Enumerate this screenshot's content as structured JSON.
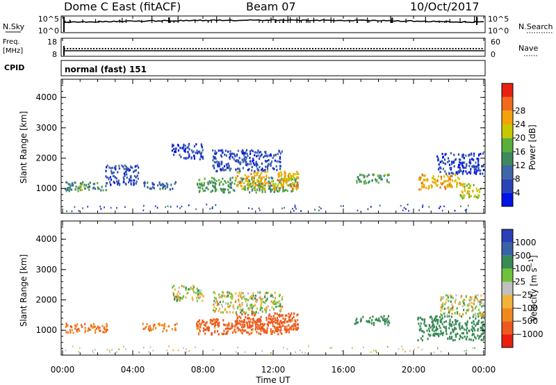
{
  "header": {
    "station": "Dome C East (fitACF)",
    "beam": "Beam 07",
    "date": "10/Oct/2017"
  },
  "strip_labels": {
    "nsky": "N.Sky",
    "nsky_top": "10^5",
    "nsky_bottom": "10^0",
    "nsearch": "N.Search",
    "nsearch_top": "10^5",
    "nsearch_bottom": "10^0",
    "freq_line1": "Freq.",
    "freq_line2": "[MHz]",
    "freq_top": "18",
    "freq_bottom": "8",
    "nave": "Nave",
    "nave_top": "60",
    "nave_bottom": "0",
    "cpid": "CPID",
    "cpid_value": "normal (fast) 151"
  },
  "colors": {
    "power_scale": [
      "#0014e6",
      "#2a44b8",
      "#3f66a8",
      "#3e8a5c",
      "#5aae3a",
      "#c8c800",
      "#f5a20a",
      "#f06a1a",
      "#e82010"
    ],
    "velocity_scale": [
      "#2a3fb8",
      "#3a62a8",
      "#3a8a56",
      "#6ec23a",
      "#c0c0c0",
      "#f0b43a",
      "#f08a1e",
      "#ee5a1e",
      "#e82010"
    ]
  },
  "chart_data": [
    {
      "type": "heatmap",
      "title": "Power",
      "ylabel": "Slant Range [km]",
      "colorbar_label": "Power [dB]",
      "colorbar_ticks": [
        "4",
        "8",
        "12",
        "16",
        "20",
        "24",
        "28"
      ],
      "x_ticks": [
        "00:00",
        "04:00",
        "08:00",
        "12:00",
        "16:00",
        "20:00",
        "00:00"
      ],
      "xlim_hours": [
        0,
        24
      ],
      "y_ticks": [
        "1000",
        "2000",
        "3000",
        "4000"
      ],
      "ylim_km": [
        180,
        4600
      ],
      "regions": [
        {
          "t": [
            0.1,
            2.6
          ],
          "r": [
            950,
            1250
          ],
          "v": 12
        },
        {
          "t": [
            0.9,
            1.3
          ],
          "r": [
            980,
            1200
          ],
          "v": 18
        },
        {
          "t": [
            2.4,
            4.3
          ],
          "r": [
            1150,
            1800
          ],
          "v": 6
        },
        {
          "t": [
            4.5,
            6.5
          ],
          "r": [
            1000,
            1250
          ],
          "v": 8
        },
        {
          "t": [
            6.2,
            8.0
          ],
          "r": [
            2000,
            2500
          ],
          "v": 5
        },
        {
          "t": [
            7.6,
            13.4
          ],
          "r": [
            900,
            1400
          ],
          "v": 14
        },
        {
          "t": [
            9.8,
            13.4
          ],
          "r": [
            1000,
            1600
          ],
          "v": 22
        },
        {
          "t": [
            8.5,
            12.5
          ],
          "r": [
            1600,
            2300
          ],
          "v": 6
        },
        {
          "t": [
            16.6,
            18.6
          ],
          "r": [
            1200,
            1500
          ],
          "v": 14
        },
        {
          "t": [
            20.2,
            22.6
          ],
          "r": [
            1000,
            1500
          ],
          "v": 22
        },
        {
          "t": [
            21.3,
            24.0
          ],
          "r": [
            1500,
            2200
          ],
          "v": 5
        },
        {
          "t": [
            22.6,
            23.8
          ],
          "r": [
            700,
            1200
          ],
          "v": 20
        }
      ]
    },
    {
      "type": "heatmap",
      "title": "Velocity",
      "ylabel": "Slant Range [km]",
      "xlabel": "Time UT",
      "colorbar_label": "Velocity [m s^-1]",
      "colorbar_ticks": [
        "1000",
        "500",
        "100",
        "25",
        "-25",
        "-100",
        "-500",
        "-1000"
      ],
      "x_ticks": [
        "00:00",
        "04:00",
        "08:00",
        "12:00",
        "16:00",
        "20:00",
        "00:00"
      ],
      "xlim_hours": [
        0,
        24
      ],
      "y_ticks": [
        "1000",
        "2000",
        "3000",
        "4000"
      ],
      "ylim_km": [
        180,
        4600
      ],
      "regions": [
        {
          "t": [
            0.1,
            2.6
          ],
          "r": [
            950,
            1250
          ],
          "v": -300
        },
        {
          "t": [
            4.5,
            6.5
          ],
          "r": [
            1000,
            1250
          ],
          "v": -250
        },
        {
          "t": [
            6.2,
            8.0
          ],
          "r": [
            2000,
            2500
          ],
          "v": 10
        },
        {
          "t": [
            7.6,
            13.4
          ],
          "r": [
            900,
            1400
          ],
          "v": -350
        },
        {
          "t": [
            9.8,
            13.4
          ],
          "r": [
            1000,
            1600
          ],
          "v": -400
        },
        {
          "t": [
            8.5,
            12.5
          ],
          "r": [
            1600,
            2300
          ],
          "v": 0
        },
        {
          "t": [
            16.6,
            18.6
          ],
          "r": [
            1200,
            1500
          ],
          "v": 150
        },
        {
          "t": [
            20.2,
            24.0
          ],
          "r": [
            700,
            1500
          ],
          "v": 200
        },
        {
          "t": [
            21.5,
            24.0
          ],
          "r": [
            1500,
            2200
          ],
          "v": 5
        }
      ]
    }
  ]
}
